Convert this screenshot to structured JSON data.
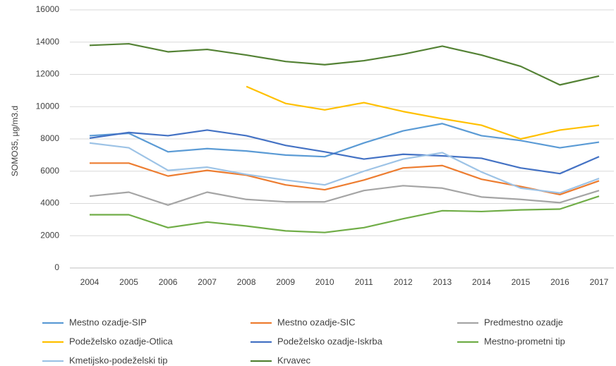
{
  "chart_data": {
    "type": "line",
    "y_label": "SOMO35, µg/m3.d",
    "categories": [
      "2004",
      "2005",
      "2006",
      "2007",
      "2008",
      "2009",
      "2010",
      "2011",
      "2012",
      "2013",
      "2014",
      "2015",
      "2016",
      "2017"
    ],
    "ylim": [
      0,
      16000
    ],
    "yticks": [
      0,
      2000,
      4000,
      6000,
      8000,
      10000,
      12000,
      14000,
      16000
    ],
    "grid": true,
    "legend": "bottom",
    "series": [
      {
        "name": "Mestno ozadje-SIP",
        "color": "#5b9bd5",
        "values": [
          8200,
          8350,
          7200,
          7400,
          7250,
          7000,
          6900,
          7750,
          8500,
          8950,
          8200,
          7900,
          7450,
          7800
        ]
      },
      {
        "name": "Mestno ozadje-SIC",
        "color": "#ed7d31",
        "values": [
          6500,
          6500,
          5700,
          6050,
          5750,
          5150,
          4850,
          5450,
          6200,
          6350,
          5500,
          5050,
          4550,
          5400
        ]
      },
      {
        "name": "Predmestno ozadje",
        "color": "#a5a5a5",
        "values": [
          4450,
          4700,
          3900,
          4700,
          4250,
          4100,
          4100,
          4800,
          5100,
          4950,
          4400,
          4250,
          4050,
          4800
        ]
      },
      {
        "name": "Podeželsko ozadje-Otlica",
        "color": "#ffc000",
        "values": [
          null,
          null,
          null,
          null,
          11250,
          10200,
          9800,
          10250,
          9700,
          9250,
          8850,
          8000,
          8550,
          8850
        ]
      },
      {
        "name": "Podeželsko ozadje-Iskrba",
        "color": "#4472c4",
        "values": [
          8050,
          8400,
          8200,
          8550,
          8200,
          7600,
          7200,
          6750,
          7050,
          6950,
          6800,
          6200,
          5850,
          6900
        ]
      },
      {
        "name": "Mestno-prometni tip",
        "color": "#70ad47",
        "values": [
          3300,
          3300,
          2500,
          2850,
          2600,
          2300,
          2200,
          2500,
          3050,
          3550,
          3500,
          3600,
          3650,
          4450
        ]
      },
      {
        "name": "Kmetijsko-podeželski tip",
        "color": "#9dc3e6",
        "values": [
          7750,
          7450,
          6050,
          6250,
          5800,
          5450,
          5150,
          6000,
          6750,
          7150,
          5950,
          4950,
          4650,
          5550
        ]
      },
      {
        "name": "Krvavec",
        "color": "#548235",
        "values": [
          13800,
          13900,
          13400,
          13550,
          13200,
          12800,
          12600,
          12850,
          13250,
          13750,
          13200,
          12500,
          11350,
          11900
        ]
      }
    ]
  }
}
